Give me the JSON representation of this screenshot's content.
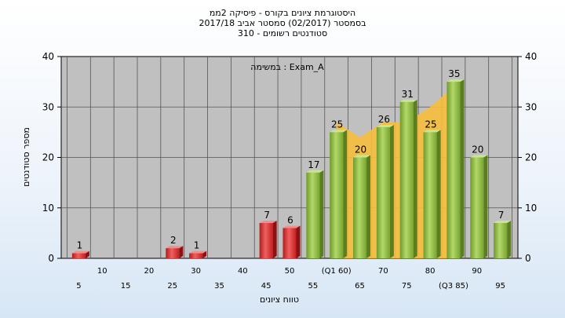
{
  "header": {
    "title_line1": "היסטוגרמת ציונים בקורס - פיסיקה 2ממ",
    "title_line2": "בסמסטר  (02/2017)  סמסטר אביב 2017/18",
    "title_line3": "סטודנטים רשומים - 310"
  },
  "chart_data": {
    "type": "bar",
    "legend": "במשימה :  Exam_A",
    "ylabel": "מספר סטודנטים",
    "xlabel": "טווח ציונים",
    "ylim": [
      0,
      40
    ],
    "yticks": [
      0,
      10,
      20,
      30,
      40
    ],
    "grid": true,
    "categories": [
      5,
      10,
      15,
      20,
      25,
      30,
      35,
      40,
      45,
      50,
      55,
      60,
      65,
      70,
      75,
      80,
      85,
      90,
      95
    ],
    "x_tick_labels": [
      "5",
      "10",
      "15",
      "20",
      "25",
      "30",
      "35",
      "40",
      "45",
      "50",
      "55",
      "(Q1 60)",
      "65",
      "70",
      "75",
      "80",
      "(Q3 85)",
      "90",
      "95"
    ],
    "values": [
      1,
      0,
      0,
      0,
      2,
      1,
      0,
      0,
      7,
      6,
      17,
      25,
      20,
      26,
      31,
      25,
      35,
      20,
      7
    ],
    "bar_color_fail": "#dd2b2b",
    "bar_color_pass": "#8fbf3f",
    "pass_threshold": 55,
    "area_band": {
      "color": "#f6bf3c",
      "from": 60,
      "to": 85,
      "upper": [
        27,
        24,
        27,
        27,
        30,
        34
      ]
    }
  }
}
